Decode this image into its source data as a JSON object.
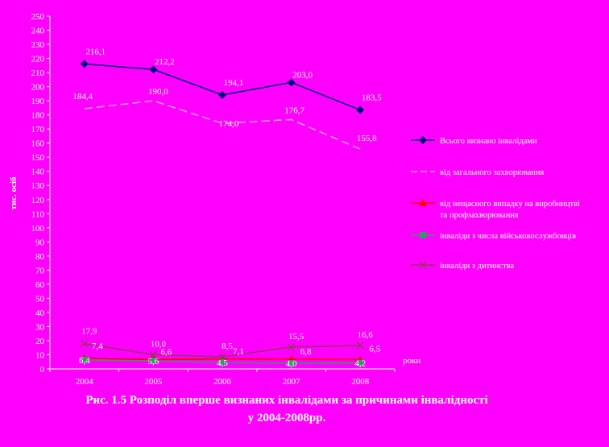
{
  "caption": {
    "line1": "Рис. 1.5 Розподіл вперше визнаних інвалідами за причинами інвалідності",
    "line2": "у 2004-2008рр."
  },
  "chart_data": {
    "type": "line",
    "x": [
      "2004",
      "2005",
      "2006",
      "2007",
      "2008"
    ],
    "ylabel": "тис. осіб",
    "xlabel": "роки",
    "ylim": [
      0,
      250
    ],
    "ytick_step": 10,
    "grid": false,
    "legend_position": "right",
    "series": [
      {
        "name": "Всього визнано інвалідами",
        "values": [
          216.1,
          212.2,
          194.1,
          203.0,
          183.5
        ],
        "labels": [
          "216,1",
          "212,2",
          "194,1",
          "203,0",
          "183,5"
        ],
        "color": "#000080",
        "marker": "diamond",
        "dash": false
      },
      {
        "name": "від загального захворювання",
        "values": [
          184.4,
          190.0,
          174.0,
          176.7,
          155.8
        ],
        "labels": [
          "184,4",
          "190,0",
          "174,0",
          "176,7",
          "155,8"
        ],
        "color": "#FF99FF",
        "marker": "none",
        "dash": true
      },
      {
        "name": "від нещасного випадку на виробництві та профзахворювання",
        "values": [
          7.4,
          6.6,
          7.1,
          6.8,
          6.5
        ],
        "labels": [
          "7,4",
          "6,6",
          "7,1",
          "6,8",
          "6,5"
        ],
        "color": "#FF0000",
        "marker": "triangle",
        "dash": false
      },
      {
        "name": "інваліди з числа військовослужбовців",
        "values": [
          6.4,
          5.6,
          4.5,
          4.0,
          4.2
        ],
        "labels": [
          "6,4",
          "5,6",
          "4,5",
          "4,0",
          "4,2"
        ],
        "color": "#339966",
        "marker": "square",
        "dash": false
      },
      {
        "name": "інваліди з дитинства",
        "values": [
          17.9,
          10.0,
          8.5,
          15.5,
          16.6
        ],
        "labels": [
          "17,9",
          "10,0",
          "8,5",
          "15,5",
          "16,6"
        ],
        "color": "#993366",
        "marker": "x",
        "dash": false
      }
    ]
  }
}
